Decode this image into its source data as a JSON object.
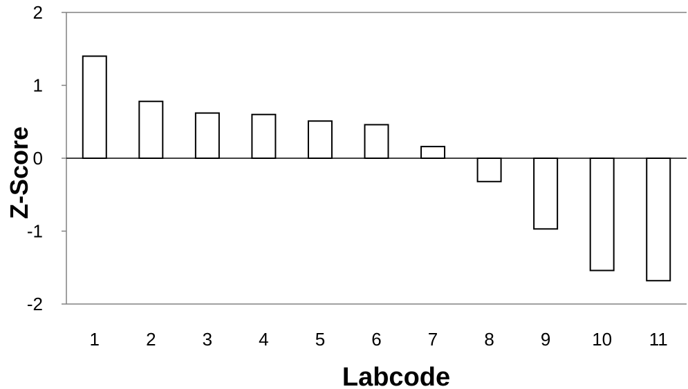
{
  "chart_data": {
    "type": "bar",
    "categories": [
      "1",
      "2",
      "3",
      "4",
      "5",
      "6",
      "7",
      "8",
      "9",
      "10",
      "11"
    ],
    "values": [
      1.4,
      0.78,
      0.62,
      0.6,
      0.51,
      0.46,
      0.16,
      -0.32,
      -0.97,
      -1.54,
      -1.68
    ],
    "xlabel": "Labcode",
    "ylabel": "Z-Score",
    "ylim": [
      -2,
      2
    ],
    "yticks": [
      "-2",
      "-1",
      "0",
      "1",
      "2"
    ],
    "grid": false,
    "colors": {
      "bar_fill": "#ffffff",
      "bar_stroke": "#000000",
      "axis": "#808080"
    }
  }
}
